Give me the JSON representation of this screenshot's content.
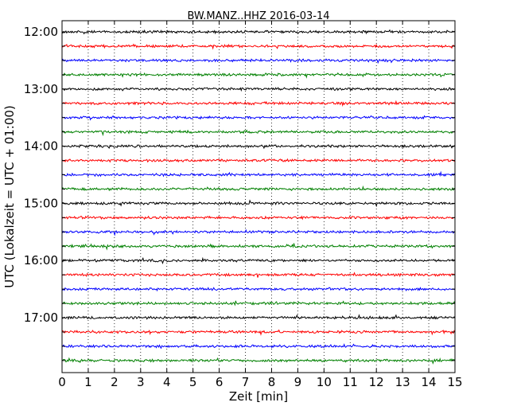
{
  "chart_data": {
    "type": "line",
    "title": "BW.MANZ..HHZ 2016-03-14",
    "xlabel": "Zeit  [min]",
    "ylabel": "UTC (Lokalzeit = UTC + 01:00)",
    "xlim": [
      0,
      15
    ],
    "x_ticks": [
      "0",
      "1",
      "2",
      "3",
      "4",
      "5",
      "6",
      "7",
      "8",
      "9",
      "10",
      "11",
      "12",
      "13",
      "14",
      "15"
    ],
    "y_ticks": [
      "12:00",
      "13:00",
      "14:00",
      "15:00",
      "16:00",
      "17:00"
    ],
    "grid": "vertical dotted",
    "trace_colors": [
      "#000000",
      "#ff0000",
      "#0000ff",
      "#008000"
    ],
    "traces": [
      {
        "start": "12:00",
        "color": "#000000"
      },
      {
        "start": "12:15",
        "color": "#ff0000"
      },
      {
        "start": "12:30",
        "color": "#0000ff"
      },
      {
        "start": "12:45",
        "color": "#008000"
      },
      {
        "start": "13:00",
        "color": "#000000"
      },
      {
        "start": "13:15",
        "color": "#ff0000"
      },
      {
        "start": "13:30",
        "color": "#0000ff"
      },
      {
        "start": "13:45",
        "color": "#008000"
      },
      {
        "start": "14:00",
        "color": "#000000"
      },
      {
        "start": "14:15",
        "color": "#ff0000"
      },
      {
        "start": "14:30",
        "color": "#0000ff"
      },
      {
        "start": "14:45",
        "color": "#008000"
      },
      {
        "start": "15:00",
        "color": "#000000"
      },
      {
        "start": "15:15",
        "color": "#ff0000"
      },
      {
        "start": "15:30",
        "color": "#0000ff"
      },
      {
        "start": "15:45",
        "color": "#008000"
      },
      {
        "start": "16:00",
        "color": "#000000"
      },
      {
        "start": "16:15",
        "color": "#ff0000"
      },
      {
        "start": "16:30",
        "color": "#0000ff"
      },
      {
        "start": "16:45",
        "color": "#008000"
      },
      {
        "start": "17:00",
        "color": "#000000"
      },
      {
        "start": "17:15",
        "color": "#ff0000"
      },
      {
        "start": "17:30",
        "color": "#0000ff"
      },
      {
        "start": "17:45",
        "color": "#008000"
      }
    ]
  }
}
